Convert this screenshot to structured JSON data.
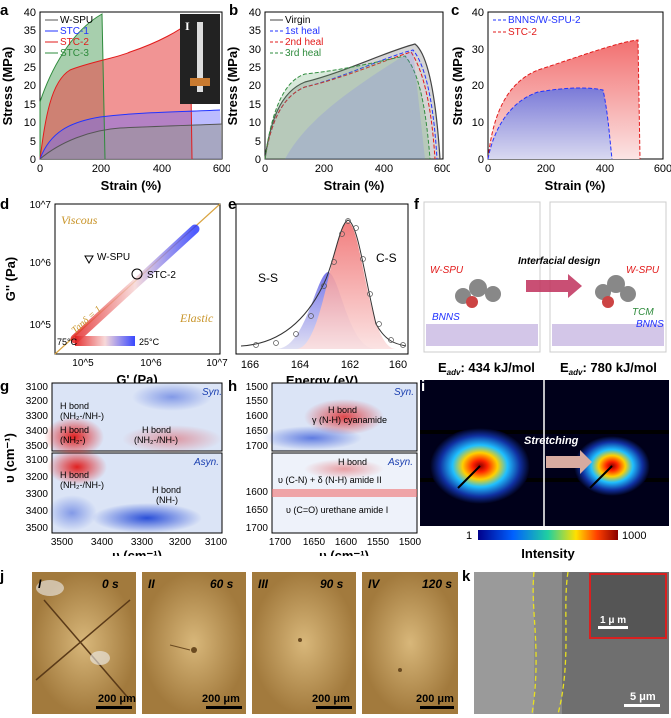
{
  "panels": {
    "a": {
      "label": "a",
      "xlabel": "Strain (%)",
      "ylabel": "Stress (MPa)",
      "xticks": [
        "0",
        "200",
        "400",
        "600"
      ],
      "yticks": [
        "0",
        "5",
        "10",
        "15",
        "20",
        "25",
        "30",
        "35",
        "40"
      ],
      "legend": [
        "W-SPU",
        "STC-1",
        "STC-2",
        "STC-3"
      ],
      "inset_label": "I"
    },
    "b": {
      "label": "b",
      "xlabel": "Strain (%)",
      "ylabel": "Stress (MPa)",
      "xticks": [
        "0",
        "200",
        "400",
        "600"
      ],
      "yticks": [
        "0",
        "5",
        "10",
        "15",
        "20",
        "25",
        "30",
        "35",
        "40"
      ],
      "legend": [
        "Virgin",
        "1st heal",
        "2nd heal",
        "3rd heal"
      ]
    },
    "c": {
      "label": "c",
      "xlabel": "Strain (%)",
      "ylabel": "Stress (MPa)",
      "xticks": [
        "0",
        "200",
        "400",
        "600"
      ],
      "yticks": [
        "0",
        "10",
        "20",
        "30",
        "40"
      ],
      "legend": [
        "BNNS/W-SPU-2",
        "STC-2"
      ]
    },
    "d": {
      "label": "d",
      "xlabel": "G' (Pa)",
      "ylabel": "G'' (Pa)",
      "viscous": "Viscous",
      "elastic": "Elastic",
      "tan": "Tanδ = 1",
      "wspu": "W-SPU",
      "stc2": "STC-2",
      "t75": "75°C",
      "t25": "25°C",
      "xticks": [
        "10^5",
        "10^6",
        "10^7"
      ],
      "yticks": [
        "10^5",
        "10^6",
        "10^7"
      ]
    },
    "e": {
      "label": "e",
      "xlabel": "Energy (eV)",
      "ss": "S-S",
      "cs": "C-S",
      "xticks": [
        "166",
        "164",
        "162",
        "160"
      ]
    },
    "f": {
      "label": "f",
      "wspu": "W-SPU",
      "wspu2": "W-SPU",
      "bnns": "BNNS",
      "bnns2": "BNNS",
      "tcm": "TCM",
      "arrow": "Interfacial design",
      "eadv1": "E",
      "sub": "adv",
      "val1": ": 434 kJ/mol",
      "val2": ": 780 kJ/mol"
    },
    "g": {
      "label": "g",
      "xlabel": "υ (cm⁻¹)",
      "ylabel": "υ (cm⁻¹)",
      "syn": "Syn.",
      "asyn": "Asyn.",
      "xticks": [
        "3500",
        "3400",
        "3300",
        "3200",
        "3100"
      ],
      "yticks_top": [
        "3100",
        "3200",
        "3300",
        "3400",
        "3500"
      ],
      "yticks_bot": [
        "3100",
        "3200",
        "3300",
        "3400",
        "3500"
      ],
      "hb1": "H bond",
      "hb1b": "(NH₂-/NH-)",
      "hb2": "H bond",
      "hb2b": "(NH₂-)",
      "hb3": "H bond",
      "hb3b": "(NH₂-/NH-)",
      "hb4": "H bond",
      "hb4b": "(NH₂-/NH-)",
      "hb5": "H bond",
      "hb5b": "(NH-)"
    },
    "h": {
      "label": "h",
      "xlabel": "υ (cm⁻¹)",
      "syn": "Syn.",
      "asyn": "Asyn.",
      "xticks": [
        "1700",
        "1650",
        "1600",
        "1550",
        "1500"
      ],
      "yticks_top": [
        "1500",
        "1550",
        "1600",
        "1650",
        "1700"
      ],
      "yticks_bot": [
        "1600",
        "1650",
        "1700"
      ],
      "hb1": "H bond",
      "hb1b": "γ (N-H) cyanamide",
      "hb2": "H bond",
      "l2": "υ (C-N) + δ (N-H) amide II",
      "l3": "υ (C=O) urethane amide I"
    },
    "i": {
      "label": "i",
      "stretch": "Stretching",
      "intensity": "Intensity",
      "cmin": "1",
      "cmax": "1000"
    },
    "j": {
      "label": "j",
      "frames": [
        {
          "roman": "I",
          "time": "0 s"
        },
        {
          "roman": "II",
          "time": "60 s"
        },
        {
          "roman": "III",
          "time": "90 s"
        },
        {
          "roman": "IV",
          "time": "120 s"
        }
      ],
      "scale": "200 μm"
    },
    "k": {
      "label": "k",
      "scale": "5 μm",
      "inset_scale": "1 μ m"
    }
  }
}
